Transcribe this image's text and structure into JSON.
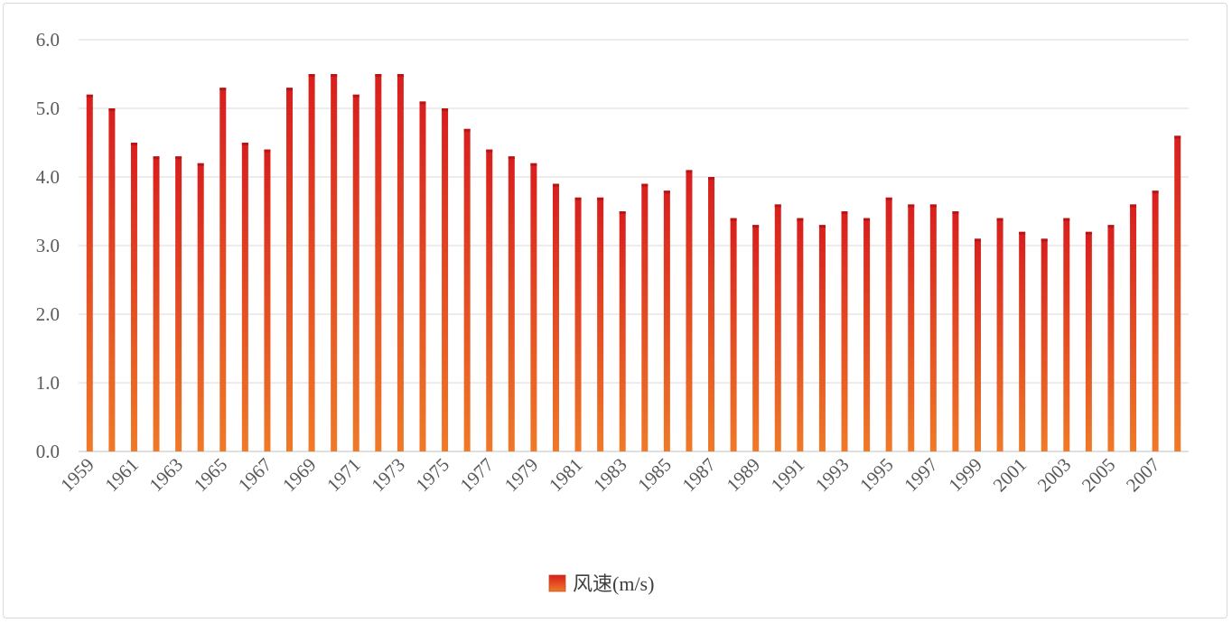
{
  "chart_data": {
    "type": "bar",
    "title": "",
    "xlabel": "",
    "ylabel": "",
    "ylim": [
      0,
      6
    ],
    "yticks": [
      "0.0",
      "1.0",
      "2.0",
      "3.0",
      "4.0",
      "5.0",
      "6.0"
    ],
    "grid": true,
    "legend_position": "bottom",
    "categories": [
      1959,
      1960,
      1961,
      1962,
      1963,
      1964,
      1965,
      1966,
      1967,
      1968,
      1969,
      1970,
      1971,
      1972,
      1973,
      1974,
      1975,
      1976,
      1977,
      1978,
      1979,
      1980,
      1981,
      1982,
      1983,
      1984,
      1985,
      1986,
      1987,
      1988,
      1989,
      1990,
      1991,
      1992,
      1993,
      1994,
      1995,
      1996,
      1997,
      1998,
      1999,
      2000,
      2001,
      2002,
      2003,
      2004,
      2005,
      2006,
      2007,
      2008
    ],
    "xtick_labels": [
      "1959",
      "1961",
      "1963",
      "1965",
      "1967",
      "1969",
      "1971",
      "1973",
      "1975",
      "1977",
      "1979",
      "1981",
      "1983",
      "1985",
      "1987",
      "1989",
      "1991",
      "1993",
      "1995",
      "1997",
      "1999",
      "2001",
      "2003",
      "2005",
      "2007"
    ],
    "series": [
      {
        "name": "风速(m/s)",
        "values": [
          5.2,
          5.0,
          4.5,
          4.3,
          4.3,
          4.2,
          5.3,
          4.5,
          4.4,
          5.3,
          5.5,
          5.5,
          5.2,
          5.5,
          5.5,
          5.1,
          5.0,
          4.7,
          4.4,
          4.3,
          4.2,
          3.9,
          3.7,
          3.7,
          3.5,
          3.9,
          3.8,
          4.1,
          4.0,
          3.4,
          3.3,
          3.6,
          3.4,
          3.3,
          3.5,
          3.4,
          3.7,
          3.6,
          3.6,
          3.5,
          3.1,
          3.4,
          3.2,
          3.1,
          3.4,
          3.2,
          3.3,
          3.6,
          3.8,
          4.6
        ]
      }
    ],
    "colors": {
      "bar_top": "#d81e1e",
      "bar_bottom": "#ef7a28",
      "grid": "#d9d9d9",
      "axis": "#bfbfbf"
    }
  }
}
